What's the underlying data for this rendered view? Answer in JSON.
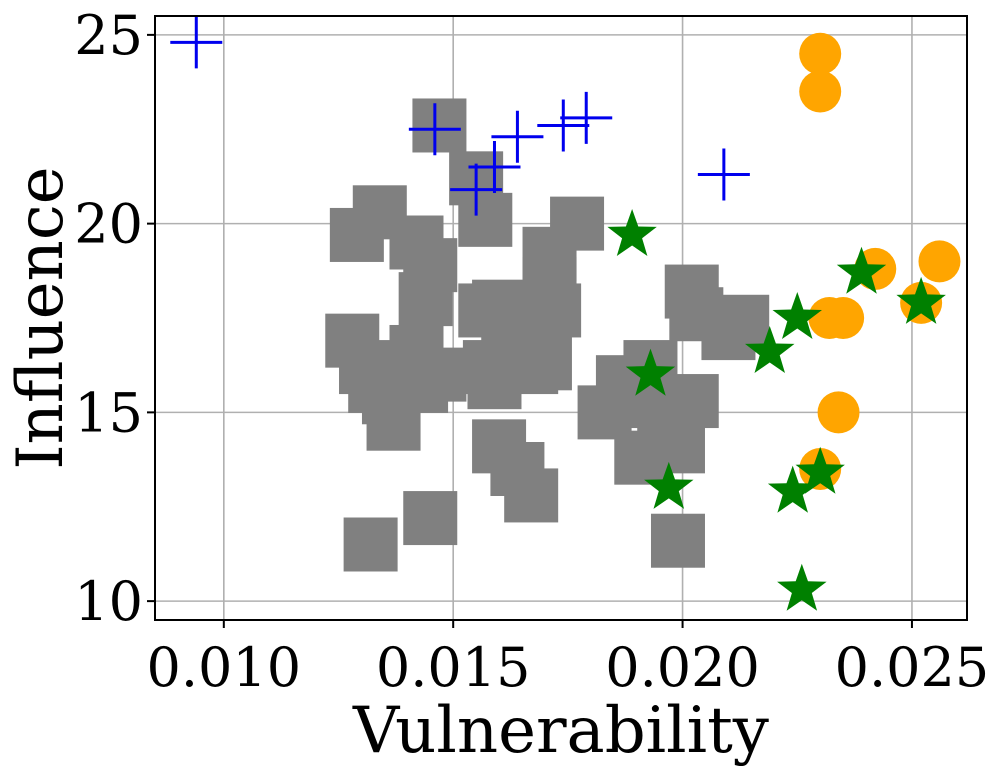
{
  "chart_data": {
    "type": "scatter",
    "title": "",
    "xlabel": "Vulnerability",
    "ylabel": "Influence",
    "xlim": [
      0.0085,
      0.0262
    ],
    "ylim": [
      9.5,
      25.5
    ],
    "xticks": [
      0.01,
      0.015,
      0.02,
      0.025
    ],
    "xtick_labels": [
      "0.010",
      "0.015",
      "0.020",
      "0.025"
    ],
    "yticks": [
      10,
      15,
      20,
      25
    ],
    "ytick_labels": [
      "10",
      "15",
      "20",
      "25"
    ],
    "grid": true,
    "legend": null,
    "series": [
      {
        "name": "gray-squares",
        "marker": "square",
        "color": "#808080",
        "points": [
          [
            0.0147,
            22.6
          ],
          [
            0.0134,
            20.3
          ],
          [
            0.0129,
            19.7
          ],
          [
            0.0142,
            19.5
          ],
          [
            0.0145,
            18.9
          ],
          [
            0.0144,
            18.0
          ],
          [
            0.0128,
            16.9
          ],
          [
            0.0131,
            16.2
          ],
          [
            0.0142,
            16.6
          ],
          [
            0.0143,
            15.7
          ],
          [
            0.0147,
            16.0
          ],
          [
            0.0133,
            15.7
          ],
          [
            0.0136,
            15.4
          ],
          [
            0.0137,
            14.7
          ],
          [
            0.0155,
            21.2
          ],
          [
            0.0157,
            20.1
          ],
          [
            0.0157,
            17.7
          ],
          [
            0.016,
            17.8
          ],
          [
            0.0162,
            17.3
          ],
          [
            0.0164,
            16.3
          ],
          [
            0.0158,
            16.2
          ],
          [
            0.0159,
            15.8
          ],
          [
            0.0166,
            16.6
          ],
          [
            0.0167,
            16.2
          ],
          [
            0.0171,
            19.2
          ],
          [
            0.0171,
            18.4
          ],
          [
            0.0172,
            17.7
          ],
          [
            0.0169,
            17.1
          ],
          [
            0.017,
            16.3
          ],
          [
            0.0177,
            20.0
          ],
          [
            0.016,
            14.1
          ],
          [
            0.0164,
            13.5
          ],
          [
            0.0167,
            12.8
          ],
          [
            0.0145,
            12.2
          ],
          [
            0.0132,
            11.5
          ],
          [
            0.0187,
            15.8
          ],
          [
            0.0183,
            15.0
          ],
          [
            0.0191,
            15.3
          ],
          [
            0.0193,
            16.2
          ],
          [
            0.0196,
            14.8
          ],
          [
            0.0191,
            13.8
          ],
          [
            0.0199,
            14.1
          ],
          [
            0.0202,
            15.3
          ],
          [
            0.0202,
            18.2
          ],
          [
            0.0203,
            17.6
          ],
          [
            0.021,
            17.1
          ],
          [
            0.0213,
            17.4
          ],
          [
            0.0199,
            11.6
          ]
        ]
      },
      {
        "name": "blue-plus",
        "marker": "plus",
        "color": "#0000ee",
        "points": [
          [
            0.0094,
            24.8
          ],
          [
            0.0146,
            22.5
          ],
          [
            0.0155,
            20.9
          ],
          [
            0.0159,
            21.5
          ],
          [
            0.0164,
            22.3
          ],
          [
            0.0174,
            22.6
          ],
          [
            0.0179,
            22.8
          ],
          [
            0.0209,
            21.3
          ]
        ]
      },
      {
        "name": "orange-circles",
        "marker": "circle",
        "color": "#ffa500",
        "points": [
          [
            0.023,
            24.5
          ],
          [
            0.023,
            23.5
          ],
          [
            0.0242,
            18.8
          ],
          [
            0.0256,
            19.0
          ],
          [
            0.0252,
            17.9
          ],
          [
            0.0232,
            17.5
          ],
          [
            0.0235,
            17.5
          ],
          [
            0.0234,
            15.0
          ],
          [
            0.023,
            13.5
          ]
        ]
      },
      {
        "name": "green-stars",
        "marker": "star",
        "color": "#008000",
        "points": [
          [
            0.0189,
            19.7
          ],
          [
            0.0193,
            16.0
          ],
          [
            0.0197,
            13.0
          ],
          [
            0.0219,
            16.6
          ],
          [
            0.0225,
            17.5
          ],
          [
            0.0239,
            18.7
          ],
          [
            0.0252,
            17.9
          ],
          [
            0.0224,
            12.9
          ],
          [
            0.023,
            13.4
          ],
          [
            0.0226,
            10.3
          ]
        ]
      }
    ]
  }
}
